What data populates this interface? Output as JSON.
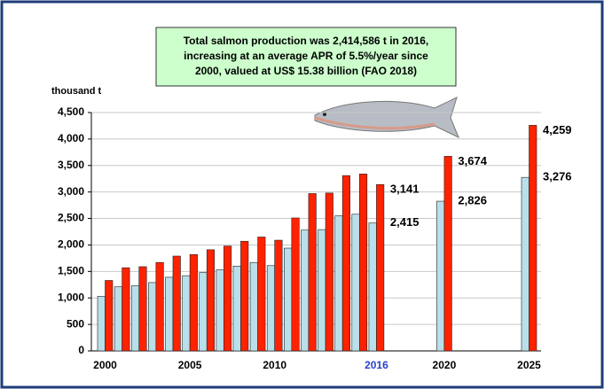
{
  "chart_data": {
    "type": "bar",
    "annotation": [
      "Total salmon production was 2,414,586 t in 2016,",
      "increasing at an average APR of 5.5%/year since",
      "2000, valued at US$ 15.38 billion (FAO 2018)"
    ],
    "ylabel": "thousand t",
    "categories": [
      "2000",
      null,
      null,
      null,
      null,
      "2005",
      null,
      null,
      null,
      null,
      "2010",
      null,
      null,
      null,
      null,
      null,
      "2016",
      null,
      null,
      null,
      "2020",
      null,
      null,
      null,
      null,
      "2025"
    ],
    "series": [
      {
        "color": "#b9dfea",
        "label_color": "#1a1a8c",
        "values": [
          1030,
          1210,
          1230,
          1290,
          1390,
          1420,
          1480,
          1530,
          1600,
          1670,
          1610,
          1940,
          2280,
          2290,
          2550,
          2580,
          2415,
          null,
          null,
          null,
          2826,
          null,
          null,
          null,
          null,
          3276
        ],
        "value_labels": [
          null,
          null,
          null,
          null,
          null,
          null,
          null,
          null,
          null,
          null,
          null,
          null,
          null,
          null,
          null,
          null,
          "2,415",
          null,
          null,
          null,
          "2,826",
          null,
          null,
          null,
          null,
          "3,276"
        ]
      },
      {
        "color": "#ff2200",
        "label_color": "#e8141c",
        "values": [
          1330,
          1570,
          1590,
          1670,
          1790,
          1820,
          1910,
          1980,
          2070,
          2150,
          2090,
          2510,
          2970,
          2980,
          3310,
          3340,
          3141,
          null,
          null,
          null,
          3674,
          null,
          null,
          null,
          null,
          4259
        ],
        "value_labels": [
          null,
          null,
          null,
          null,
          null,
          null,
          null,
          null,
          null,
          null,
          null,
          null,
          null,
          null,
          null,
          null,
          "3,141",
          null,
          null,
          null,
          "3,674",
          null,
          null,
          null,
          null,
          "4,259"
        ]
      }
    ],
    "ylim": [
      0,
      4500
    ],
    "yticks": [
      0,
      500,
      {
        "value": 1000,
        "label": "1,000"
      },
      {
        "value": 1500,
        "label": "1,500"
      },
      {
        "value": 2000,
        "label": "2,000"
      },
      {
        "value": 2500,
        "label": "2,500"
      },
      {
        "value": 3000,
        "label": "3,000"
      },
      {
        "value": 3500,
        "label": "3,500"
      },
      {
        "value": 4000,
        "label": "4,000"
      },
      {
        "value": 4500,
        "label": "4,500"
      }
    ],
    "grid": true
  }
}
